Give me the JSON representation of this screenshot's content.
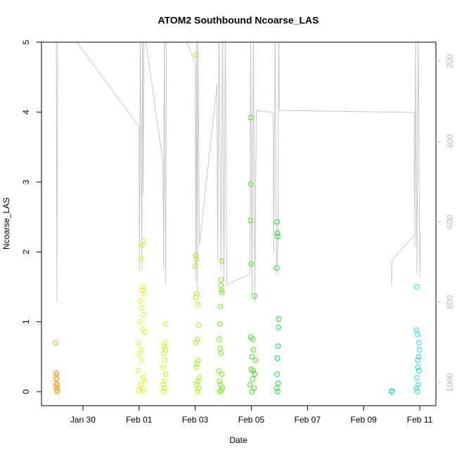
{
  "chart_data": {
    "type": "scatter",
    "title": "ATOM2 Southbound Ncoarse_LAS",
    "x_label": "Date",
    "y_label": "Ncoarse_LAS",
    "xlim": [
      28.525,
      42.575
    ],
    "xticks": [
      {
        "value": 30,
        "label": "Jan 30"
      },
      {
        "value": 32,
        "label": "Feb 01"
      },
      {
        "value": 34,
        "label": "Feb 03"
      },
      {
        "value": 36,
        "label": "Feb 05"
      },
      {
        "value": 38,
        "label": "Feb 07"
      },
      {
        "value": 40,
        "label": "Feb 09"
      },
      {
        "value": 42,
        "label": "Feb 11"
      }
    ],
    "ylim": [
      -0.2,
      5
    ],
    "yticks": [
      0,
      1,
      2,
      3,
      4,
      5
    ],
    "y2lim": [
      1057.7,
      152.8
    ],
    "y2ticks": [
      200,
      400,
      600,
      800,
      1000
    ],
    "y2_color": "#bbbbbb",
    "groups": [
      {
        "color": "#f0a020",
        "x": [
          29.03,
          29.05,
          29.06,
          29.04,
          29.07,
          29.05,
          29.08,
          29.04,
          29.06,
          29.09,
          29.07
        ],
        "values": [
          0.7,
          0.27,
          0.25,
          0.2,
          0.18,
          0.12,
          0.1,
          0.08,
          0.05,
          0.02,
          0
        ]
      },
      {
        "color": "#e8f000",
        "x": [
          32.17,
          32.13,
          32.1,
          32.15,
          32.12,
          32.18,
          32.05,
          32.1,
          32.16,
          32.03,
          32.14,
          32.2,
          31.98,
          32.08,
          32.02,
          32.12,
          31.97,
          32.15,
          32.19,
          32.05,
          32.1,
          32.0,
          32.16
        ],
        "values": [
          2.15,
          2.1,
          1.9,
          1.5,
          1.45,
          1.4,
          1.3,
          1.2,
          1.1,
          1.0,
          0.9,
          0.85,
          0.7,
          0.6,
          0.55,
          0.45,
          0.3,
          0.2,
          0.15,
          0.1,
          0.05,
          0.02,
          0
        ]
      },
      {
        "color": "#ccf500",
        "x": [
          32.95,
          32.93,
          32.9,
          32.94,
          32.88,
          32.92,
          32.87,
          32.95,
          32.9,
          32.86,
          32.92,
          32.89
        ],
        "values": [
          0.97,
          0.7,
          0.65,
          0.6,
          0.55,
          0.45,
          0.35,
          0.25,
          0.15,
          0.1,
          0.05,
          0
        ]
      },
      {
        "color": "#99f500",
        "x": [
          34.03,
          34.02,
          34.05,
          34.0,
          34.06,
          34.03,
          34.1,
          34.12,
          34.08,
          34.02,
          34.1,
          34.06,
          34.04,
          34.15,
          34.1,
          34.05,
          34.12,
          34.08
        ],
        "values": [
          4.82,
          1.95,
          1.9,
          1.8,
          1.4,
          1.35,
          1.25,
          0.95,
          0.75,
          0.7,
          0.45,
          0.4,
          0.35,
          0.2,
          0.15,
          0.1,
          0.05,
          0
        ]
      },
      {
        "color": "#66f500",
        "x": [
          34.95,
          34.93,
          34.92,
          34.94,
          34.96,
          34.9,
          34.88,
          34.86,
          34.89,
          34.92,
          34.85,
          34.95,
          34.87,
          34.9,
          34.97,
          34.93,
          34.88
        ],
        "values": [
          1.87,
          1.6,
          1.52,
          1.45,
          1.42,
          1.22,
          0.97,
          0.75,
          0.62,
          0.55,
          0.3,
          0.25,
          0.15,
          0.1,
          0.05,
          0.02,
          0
        ]
      },
      {
        "color": "#33f000",
        "x": [
          35.98,
          35.98,
          35.97,
          36.0,
          36.12,
          35.98,
          36.05,
          36.08,
          36.02,
          36.15,
          36.0,
          36.07,
          36.12,
          36.05,
          35.95,
          36.1,
          36.02
        ],
        "values": [
          3.92,
          2.97,
          2.45,
          1.83,
          1.37,
          0.78,
          0.75,
          0.6,
          0.5,
          0.45,
          0.32,
          0.3,
          0.25,
          0.18,
          0.1,
          0.05,
          0
        ]
      },
      {
        "color": "#00ee33",
        "x": [
          36.92,
          36.93,
          36.94,
          36.91,
          36.98,
          36.97,
          36.95,
          36.93,
          36.92,
          36.96,
          36.9,
          36.94
        ],
        "values": [
          2.43,
          2.27,
          2.22,
          1.77,
          1.04,
          0.92,
          0.65,
          0.48,
          0.25,
          0.12,
          0.05,
          0
        ]
      },
      {
        "color": "#00eeaa",
        "x": [
          41.0,
          41.01
        ],
        "values": [
          0,
          0.01
        ]
      },
      {
        "color": "#00eecc",
        "x": [
          41.9,
          41.88,
          41.92,
          41.97,
          41.99,
          41.96,
          41.94,
          41.93,
          41.97,
          41.9,
          41.95,
          41.88,
          41.92
        ],
        "values": [
          1.5,
          0.88,
          0.82,
          0.7,
          0.6,
          0.5,
          0.45,
          0.35,
          0.3,
          0.2,
          0.1,
          0.05,
          0
        ]
      }
    ],
    "line": {
      "axis": "y2",
      "color": "#c8c8c8",
      "x": [
        29.05,
        29.075,
        29.1,
        29.75,
        32.0,
        32.01,
        32.05,
        32.1,
        32.125,
        32.15,
        32.175,
        32.85,
        32.875,
        32.9,
        32.95,
        32.975,
        33.7,
        34.0,
        34.025,
        34.05,
        34.075,
        34.1,
        34.15,
        34.775,
        34.8,
        34.85,
        34.925,
        34.975,
        35.025,
        35.075,
        35.125,
        35.95,
        35.975,
        36.025,
        36.075,
        36.125,
        36.175,
        36.775,
        36.8,
        36.85,
        36.9,
        36.95,
        36.975,
        37.0,
        41.8,
        41.825,
        41.85,
        41.9,
        41.95,
        42.0,
        42.025,
        null,
        41.0,
        41.0,
        41.8
      ],
      "values": [
        117.8,
        800.3,
        117.8,
        149.3,
        362.8,
        721.5,
        117.8,
        721.5,
        117.8,
        529,
        117.8,
        450.3,
        712.8,
        117.8,
        756.5,
        117.8,
        152.8,
        205.3,
        747.8,
        117.8,
        774,
        117.8,
        660.3,
        257.8,
        695.3,
        117.8,
        721.5,
        117.8,
        747.8,
        117.8,
        756.5,
        730.3,
        117.8,
        782.8,
        117.8,
        800.3,
        322.5,
        327.8,
        677.8,
        117.8,
        730.3,
        651.5,
        117.8,
        322.5,
        327.8,
        661.5,
        117.8,
        730.3,
        117.8,
        739,
        625.3,
        null,
        760,
        695.3,
        634
      ]
    }
  }
}
